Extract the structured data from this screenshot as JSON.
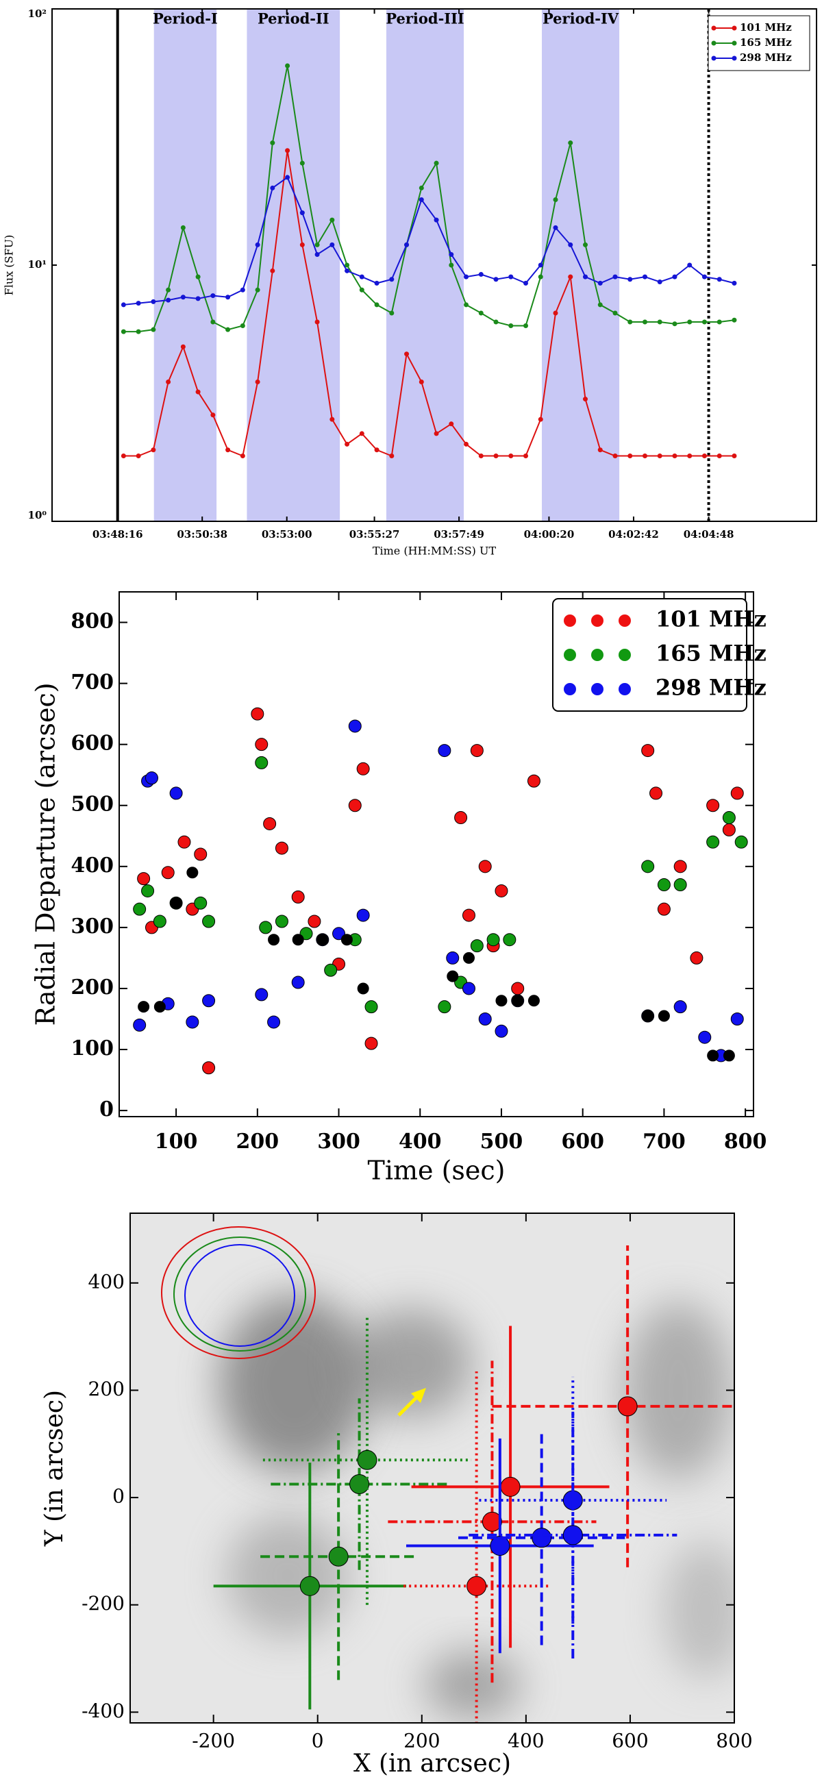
{
  "chart_data": [
    {
      "type": "line",
      "ylog": true,
      "xlabel": "Time (HH:MM:SS) UT",
      "ylabel": "Flux (SFU)",
      "xlim": [
        -110,
        1173
      ],
      "xticks": [
        {
          "value": 0,
          "label": "03:48:16"
        },
        {
          "value": 142,
          "label": "03:50:38"
        },
        {
          "value": 284,
          "label": "03:53:00"
        },
        {
          "value": 431,
          "label": "03:55:27"
        },
        {
          "value": 573,
          "label": "03:57:49"
        },
        {
          "value": 724,
          "label": "04:00:20"
        },
        {
          "value": 866,
          "label": "04:02:42"
        },
        {
          "value": 992,
          "label": "04:04:48"
        }
      ],
      "ylim": [
        1,
        100
      ],
      "yticks": [
        {
          "value": 1,
          "label": "10⁰"
        },
        {
          "value": 10,
          "label": "10¹"
        },
        {
          "value": 100,
          "label": "10²"
        }
      ],
      "periods": [
        {
          "label": "Period-I",
          "start": 61,
          "end": 166
        },
        {
          "label": "Period-II",
          "start": 217,
          "end": 373
        },
        {
          "label": "Period-III",
          "start": 451,
          "end": 581
        },
        {
          "label": "Period-IV",
          "start": 712,
          "end": 842
        }
      ],
      "period_color": "#c8c8f5",
      "vlines": [
        {
          "x": 0,
          "style": "solid"
        },
        {
          "x": 992,
          "style": "dotted"
        }
      ],
      "legend": "upper right",
      "x": [
        10,
        35,
        60,
        85,
        110,
        135,
        160,
        185,
        210,
        235,
        260,
        285,
        310,
        335,
        360,
        385,
        410,
        435,
        460,
        485,
        510,
        535,
        560,
        585,
        610,
        635,
        660,
        685,
        710,
        735,
        760,
        785,
        810,
        835,
        860,
        885,
        910,
        935,
        960,
        985,
        1010,
        1035
      ],
      "series": [
        {
          "name": "101 MHz",
          "color": "#dd1111",
          "values": [
            1.8,
            1.8,
            1.9,
            3.5,
            4.8,
            3.2,
            2.6,
            1.9,
            1.8,
            3.5,
            9.5,
            28,
            12,
            6,
            2.5,
            2.0,
            2.2,
            1.9,
            1.8,
            4.5,
            3.5,
            2.2,
            2.4,
            2.0,
            1.8,
            1.8,
            1.8,
            1.8,
            2.5,
            6.5,
            9.0,
            3.0,
            1.9,
            1.8,
            1.8,
            1.8,
            1.8,
            1.8,
            1.8,
            1.8,
            1.8,
            1.8
          ]
        },
        {
          "name": "165 MHz",
          "color": "#1a8a1a",
          "values": [
            5.5,
            5.5,
            5.6,
            8,
            14,
            9,
            6,
            5.6,
            5.8,
            8,
            30,
            60,
            25,
            12,
            15,
            10,
            8,
            7,
            6.5,
            12,
            20,
            25,
            10,
            7,
            6.5,
            6,
            5.8,
            5.8,
            9,
            18,
            30,
            12,
            7,
            6.5,
            6,
            6,
            6,
            5.9,
            6,
            6,
            6,
            6.1
          ]
        },
        {
          "name": "298 MHz",
          "color": "#1515d5",
          "values": [
            7,
            7.1,
            7.2,
            7.3,
            7.5,
            7.4,
            7.6,
            7.5,
            8,
            12,
            20,
            22,
            16,
            11,
            12,
            9.5,
            9,
            8.5,
            8.8,
            12,
            18,
            15,
            11,
            9,
            9.2,
            8.8,
            9,
            8.5,
            10,
            14,
            12,
            9,
            8.5,
            9,
            8.8,
            9,
            8.6,
            9,
            10,
            9,
            8.8,
            8.5
          ]
        }
      ]
    },
    {
      "type": "scatter",
      "xlabel": "Time (sec)",
      "ylabel": "Radial Departure (arcsec)",
      "xlim": [
        30,
        810
      ],
      "xticks": [
        100,
        200,
        300,
        400,
        500,
        600,
        700,
        800
      ],
      "ylim": [
        -10,
        850
      ],
      "yticks": [
        0,
        100,
        200,
        300,
        400,
        500,
        600,
        700,
        800
      ],
      "legend": "upper right",
      "series": [
        {
          "name": "101 MHz",
          "color": "#ee1111",
          "x": [
            60,
            70,
            90,
            110,
            120,
            130,
            140,
            200,
            205,
            215,
            230,
            250,
            270,
            300,
            320,
            330,
            340,
            450,
            460,
            470,
            480,
            490,
            500,
            520,
            540,
            680,
            690,
            700,
            720,
            740,
            760,
            780,
            790
          ],
          "values": [
            380,
            300,
            390,
            440,
            330,
            420,
            70,
            650,
            600,
            470,
            430,
            350,
            310,
            240,
            500,
            560,
            110,
            480,
            320,
            590,
            400,
            270,
            360,
            200,
            540,
            590,
            520,
            330,
            400,
            250,
            500,
            460,
            520
          ]
        },
        {
          "name": "165 MHz",
          "color": "#119911",
          "x": [
            55,
            65,
            80,
            100,
            130,
            140,
            205,
            210,
            230,
            260,
            290,
            320,
            340,
            430,
            450,
            470,
            490,
            510,
            680,
            700,
            720,
            760,
            780,
            795
          ],
          "values": [
            330,
            360,
            310,
            340,
            340,
            310,
            570,
            300,
            310,
            290,
            230,
            280,
            170,
            170,
            210,
            270,
            280,
            280,
            400,
            370,
            370,
            440,
            480,
            440
          ]
        },
        {
          "name": "298 MHz",
          "color": "#1111ee",
          "x": [
            55,
            65,
            70,
            90,
            100,
            120,
            140,
            205,
            220,
            250,
            280,
            300,
            320,
            330,
            430,
            440,
            460,
            480,
            500,
            520,
            680,
            720,
            750,
            770,
            790
          ],
          "values": [
            140,
            540,
            545,
            175,
            520,
            145,
            180,
            190,
            145,
            210,
            280,
            290,
            630,
            320,
            590,
            250,
            200,
            150,
            130,
            180,
            155,
            170,
            120,
            90,
            150
          ]
        },
        {
          "color": "#000000",
          "x": [
            60,
            80,
            100,
            120,
            220,
            250,
            280,
            310,
            330,
            440,
            460,
            500,
            520,
            540,
            680,
            700,
            760,
            780
          ],
          "values": [
            170,
            170,
            340,
            390,
            280,
            280,
            280,
            280,
            200,
            220,
            250,
            180,
            180,
            180,
            155,
            155,
            90,
            90
          ]
        }
      ]
    },
    {
      "type": "errorbar",
      "xlabel": "X (in arcsec)",
      "ylabel": "Y (in arcsec)",
      "xlim": [
        -360,
        800
      ],
      "xticks": [
        -200,
        0,
        200,
        400,
        600,
        800
      ],
      "ylim": [
        -420,
        530
      ],
      "yticks": [
        -400,
        -200,
        0,
        200,
        400
      ],
      "series": [
        {
          "color": "#1a8a1a",
          "x": [
            -15,
            40,
            80,
            95
          ],
          "values": [
            -165,
            -110,
            25,
            70
          ],
          "xerr": [
            185,
            150,
            170,
            200
          ],
          "yerr": [
            230,
            230,
            160,
            270
          ],
          "styles": [
            "solid",
            "dashed",
            "dashdot",
            "dotted"
          ]
        },
        {
          "color": "#ee1111",
          "x": [
            370,
            595,
            335,
            305
          ],
          "values": [
            20,
            170,
            -45,
            -165
          ],
          "xerr": [
            190,
            260,
            200,
            140
          ],
          "yerr": [
            300,
            300,
            300,
            400
          ],
          "styles": [
            "solid",
            "dashed",
            "dashdot",
            "dotted"
          ]
        },
        {
          "color": "#1111ee",
          "x": [
            350,
            430,
            490,
            490
          ],
          "values": [
            -90,
            -75,
            -5,
            -70
          ],
          "xerr": [
            180,
            160,
            180,
            200
          ],
          "yerr": [
            200,
            200,
            230,
            230
          ],
          "styles": [
            "solid",
            "dashed",
            "dotted",
            "dashdot"
          ]
        }
      ]
    }
  ]
}
